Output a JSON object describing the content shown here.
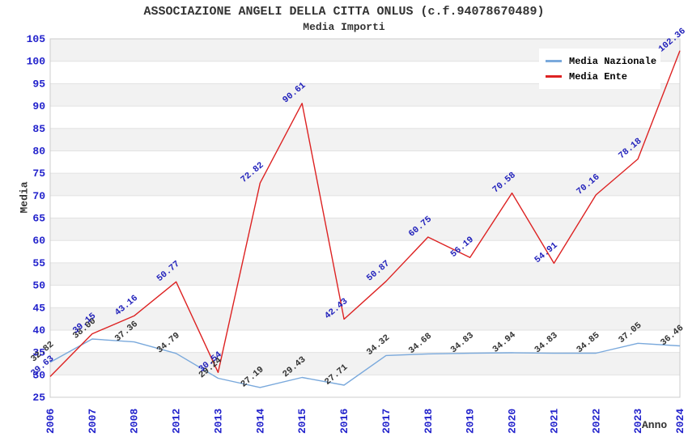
{
  "title": "ASSOCIAZIONE ANGELI DELLA CITTA ONLUS (c.f.94078670489)",
  "subtitle": "Media Importi",
  "legend": {
    "items": [
      {
        "label": "Media Nazionale",
        "color": "#7aa9dc"
      },
      {
        "label": "Media Ente",
        "color": "#dd2222"
      }
    ]
  },
  "chart_data": {
    "type": "line",
    "title": "ASSOCIAZIONE ANGELI DELLA CITTA ONLUS (c.f.94078670489)",
    "subtitle": "Media Importi",
    "xlabel": "Anno",
    "ylabel": "Media",
    "ylim": [
      25,
      105
    ],
    "ytick_step": 5,
    "grid": true,
    "legend_position": "top-right",
    "band_colors": [
      "#f2f2f2",
      "#ffffff"
    ],
    "axis_tick_color": "#2222cc",
    "categories": [
      "2006",
      "2007",
      "2008",
      "2012",
      "2013",
      "2014",
      "2015",
      "2016",
      "2017",
      "2018",
      "2019",
      "2020",
      "2021",
      "2022",
      "2023",
      "2024"
    ],
    "series": [
      {
        "name": "Media Nazionale",
        "color": "#7aa9dc",
        "label_color": "#333333",
        "values": [
          32.82,
          38.0,
          37.36,
          34.79,
          29.24,
          27.19,
          29.43,
          27.71,
          34.32,
          34.68,
          34.83,
          34.94,
          34.83,
          34.85,
          37.05,
          36.46
        ]
      },
      {
        "name": "Media Ente",
        "color": "#dd2222",
        "label_color": "#2222bb",
        "values": [
          29.63,
          39.15,
          43.16,
          50.77,
          30.54,
          72.82,
          90.61,
          42.43,
          50.87,
          60.75,
          56.19,
          70.58,
          54.91,
          70.16,
          78.18,
          102.36
        ]
      }
    ]
  }
}
